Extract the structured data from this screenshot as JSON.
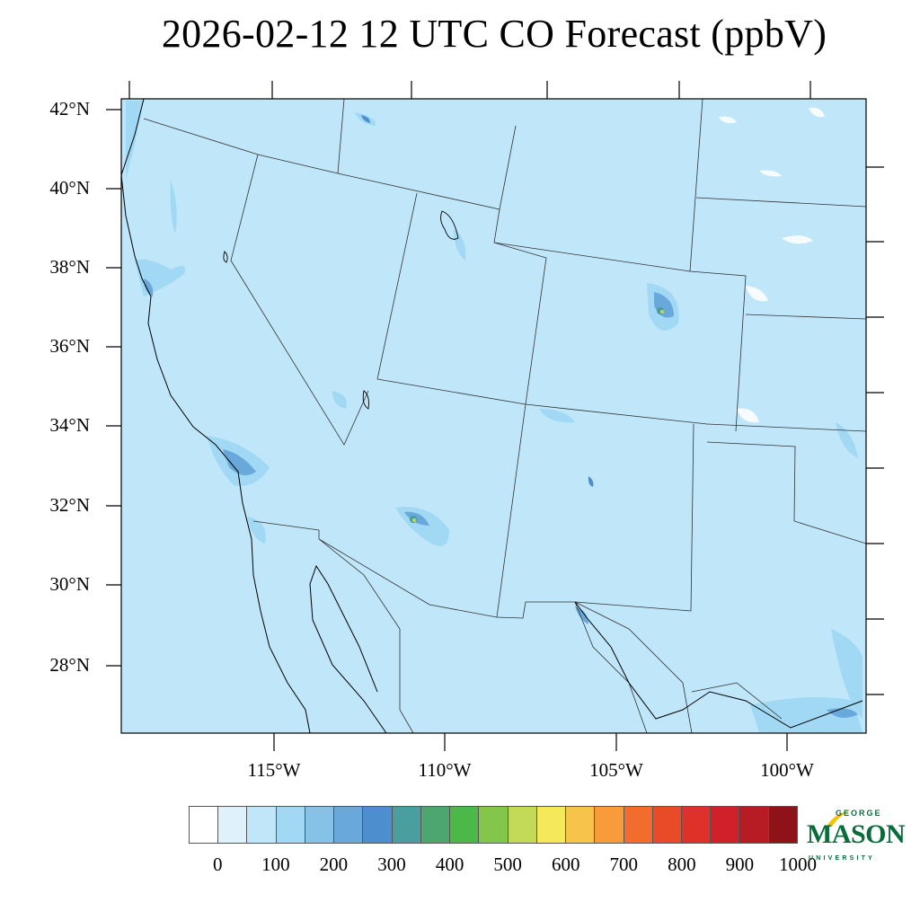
{
  "title": "2026-02-12 12 UTC CO Forecast (ppbV)",
  "lat_labels": [
    "42°N",
    "40°N",
    "38°N",
    "36°N",
    "34°N",
    "32°N",
    "30°N",
    "28°N"
  ],
  "lon_labels": [
    "115°W",
    "110°W",
    "105°W",
    "100°W"
  ],
  "colorbar": {
    "colors": [
      "#ffffff",
      "#dff1fb",
      "#bfe6f9",
      "#a1d8f3",
      "#86c1e8",
      "#68a8db",
      "#4d8ecf",
      "#4b9e9e",
      "#4da66e",
      "#4bb847",
      "#84c64c",
      "#c3d958",
      "#f5e85a",
      "#f8c34a",
      "#f79b3b",
      "#f26c2e",
      "#e94b29",
      "#e0302a",
      "#d0202a",
      "#b71c24",
      "#8e1218"
    ],
    "labels": [
      "0",
      "100",
      "200",
      "300",
      "400",
      "500",
      "600",
      "700",
      "800",
      "900",
      "1000"
    ]
  },
  "logo": {
    "line1": "GEORGE",
    "line2": "MASON",
    "line3": "UNIVERSITY"
  }
}
